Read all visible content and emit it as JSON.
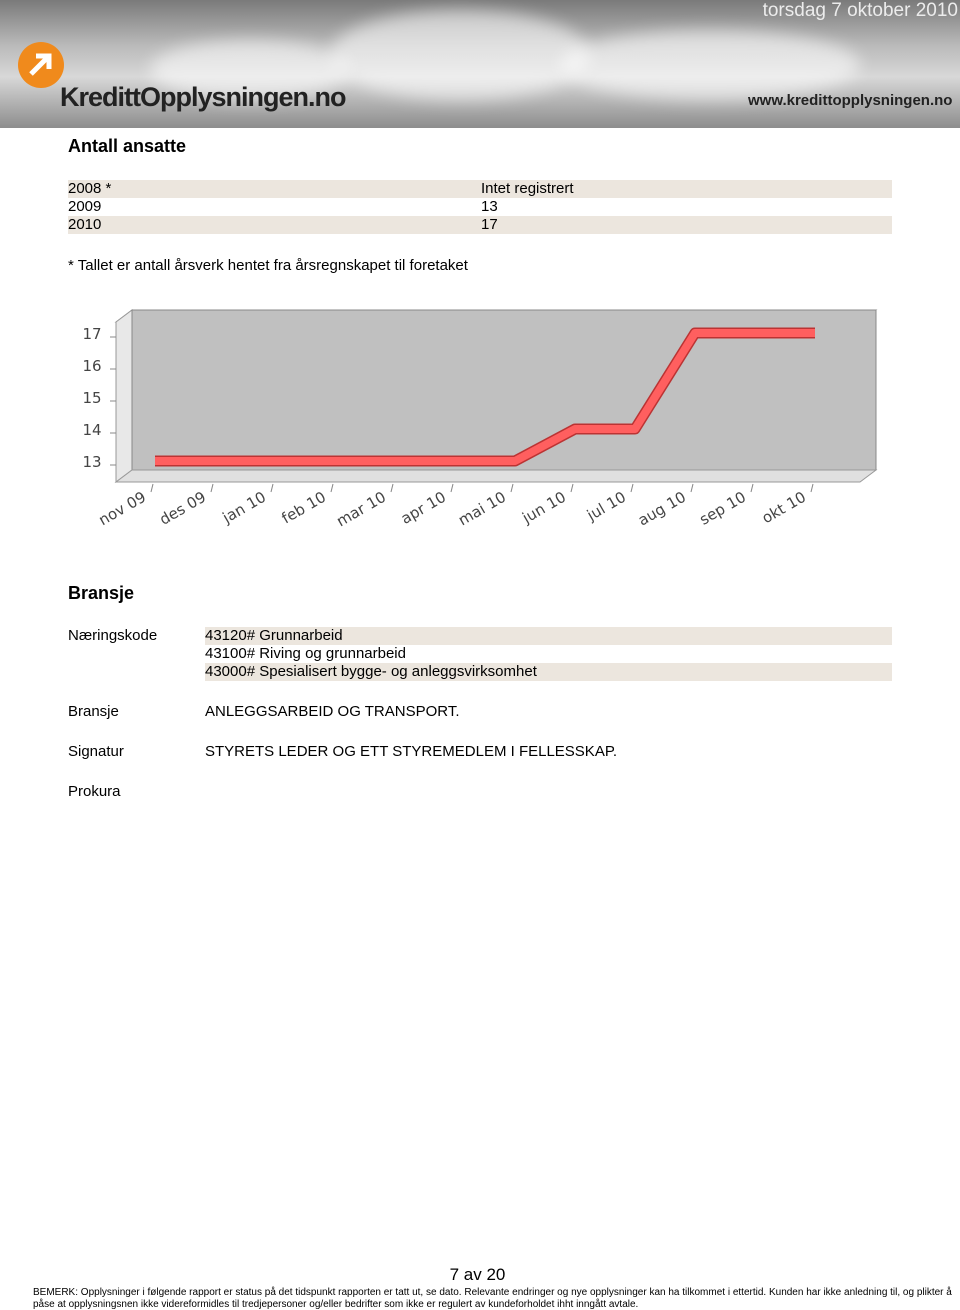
{
  "header": {
    "date": "torsdag 7 oktober 2010",
    "logo": "KredittOpplysningen.no",
    "url": "www.kredittopplysningen.no"
  },
  "employees": {
    "title": "Antall ansatte",
    "rows": [
      [
        "2008 *",
        "Intet registrert"
      ],
      [
        "2009",
        "13"
      ],
      [
        "2010",
        "17"
      ]
    ],
    "note": "*  Tallet er antall årsverk hentet fra årsregnskapet til foretaket"
  },
  "chart_data": {
    "type": "line",
    "categories": [
      "nov 09",
      "des 09",
      "jan 10",
      "feb 10",
      "mar 10",
      "apr 10",
      "mai 10",
      "jun 10",
      "jul 10",
      "aug 10",
      "sep 10",
      "okt 10"
    ],
    "values": [
      13,
      13,
      13,
      13,
      13,
      13,
      13,
      14,
      14,
      17,
      17,
      17
    ],
    "color": "#ff5f5f",
    "ylim": [
      12.7,
      17.3
    ],
    "yticks": [
      13,
      14,
      15,
      16,
      17
    ],
    "grid": false
  },
  "industry": {
    "title": "Bransje",
    "rows": [
      {
        "label": "Næringskode",
        "values": [
          "43120# Grunnarbeid",
          "43100# Riving og grunnarbeid",
          "43000# Spesialisert bygge- og anleggsvirksomhet"
        ]
      },
      {
        "label": "Bransje",
        "values": [
          "ANLEGGSARBEID OG TRANSPORT."
        ]
      },
      {
        "label": "Signatur",
        "values": [
          "STYRETS LEDER OG ETT STYREMEDLEM I FELLESSKAP."
        ]
      },
      {
        "label": "Prokura",
        "values": []
      }
    ]
  },
  "footer": {
    "page": "7 av  20",
    "remark": [
      "BEMERK: Opplysninger i følgende rapport er status på det tidspunkt rapporten er tatt ut, se dato. Relevante endringer og nye opplysninger kan ha tilkommet i ettertid. Kunden har ikke anledning til, og plikter å",
      "påse at opplysningsnen ikke videreformidles til tredjepersoner og/eller bedrifter som ikke er regulert av kundeforholdet ihht inngått avtale."
    ]
  }
}
